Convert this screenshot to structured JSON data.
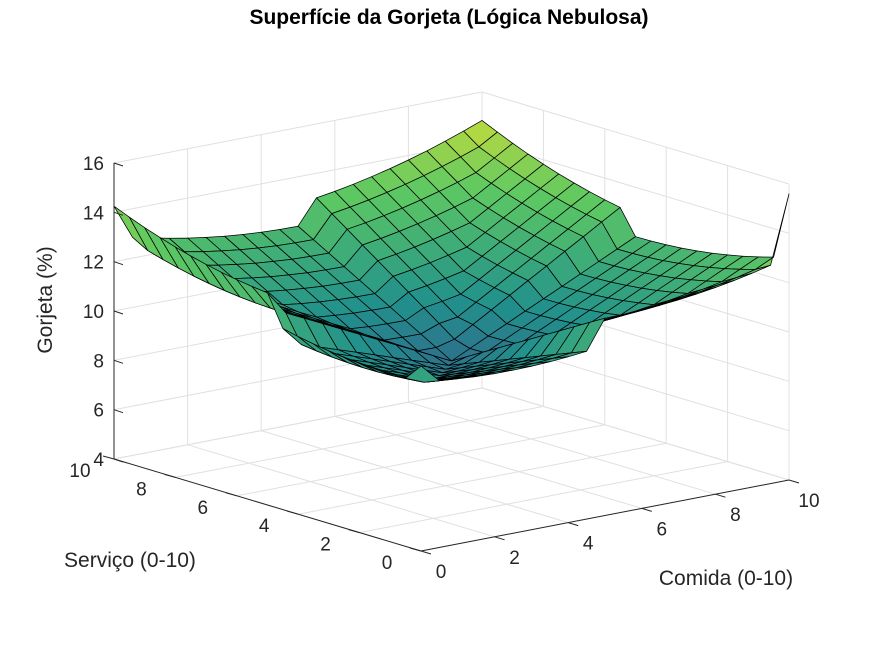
{
  "chart_data": {
    "type": "surface",
    "title": "Superfície da Gorjeta (Lógica Nebulosa)",
    "xlabel": "Comida (0-10)",
    "ylabel": "Serviço (0-10)",
    "zlabel": "Gorjeta (%)",
    "xlim": [
      0,
      10
    ],
    "ylim": [
      0,
      10
    ],
    "zlim": [
      4,
      16
    ],
    "xticks": [
      "0",
      "2",
      "4",
      "6",
      "8",
      "10"
    ],
    "yticks": [
      "0",
      "2",
      "4",
      "6",
      "8",
      "10"
    ],
    "zticks": [
      "4",
      "6",
      "8",
      "10",
      "12",
      "14",
      "16"
    ],
    "colormap": [
      "#440154",
      "#3b528b",
      "#21918c",
      "#5ec962",
      "#fde725"
    ],
    "grid": true,
    "x": [
      0,
      0.5,
      1,
      1.5,
      2,
      2.5,
      3,
      3.5,
      4,
      4.5,
      5,
      5.5,
      6,
      6.5,
      7,
      7.5,
      8,
      8.5,
      9,
      9.5,
      10
    ],
    "y": [
      0,
      0.5,
      1,
      1.5,
      2,
      2.5,
      3,
      3.5,
      4,
      4.5,
      5,
      5.5,
      6,
      6.5,
      7,
      7.5,
      8,
      8.5,
      9,
      9.5,
      10
    ],
    "description_of_z": "z = Gorjeta (%), a 21×21 grid indexed [service][food]"
  }
}
